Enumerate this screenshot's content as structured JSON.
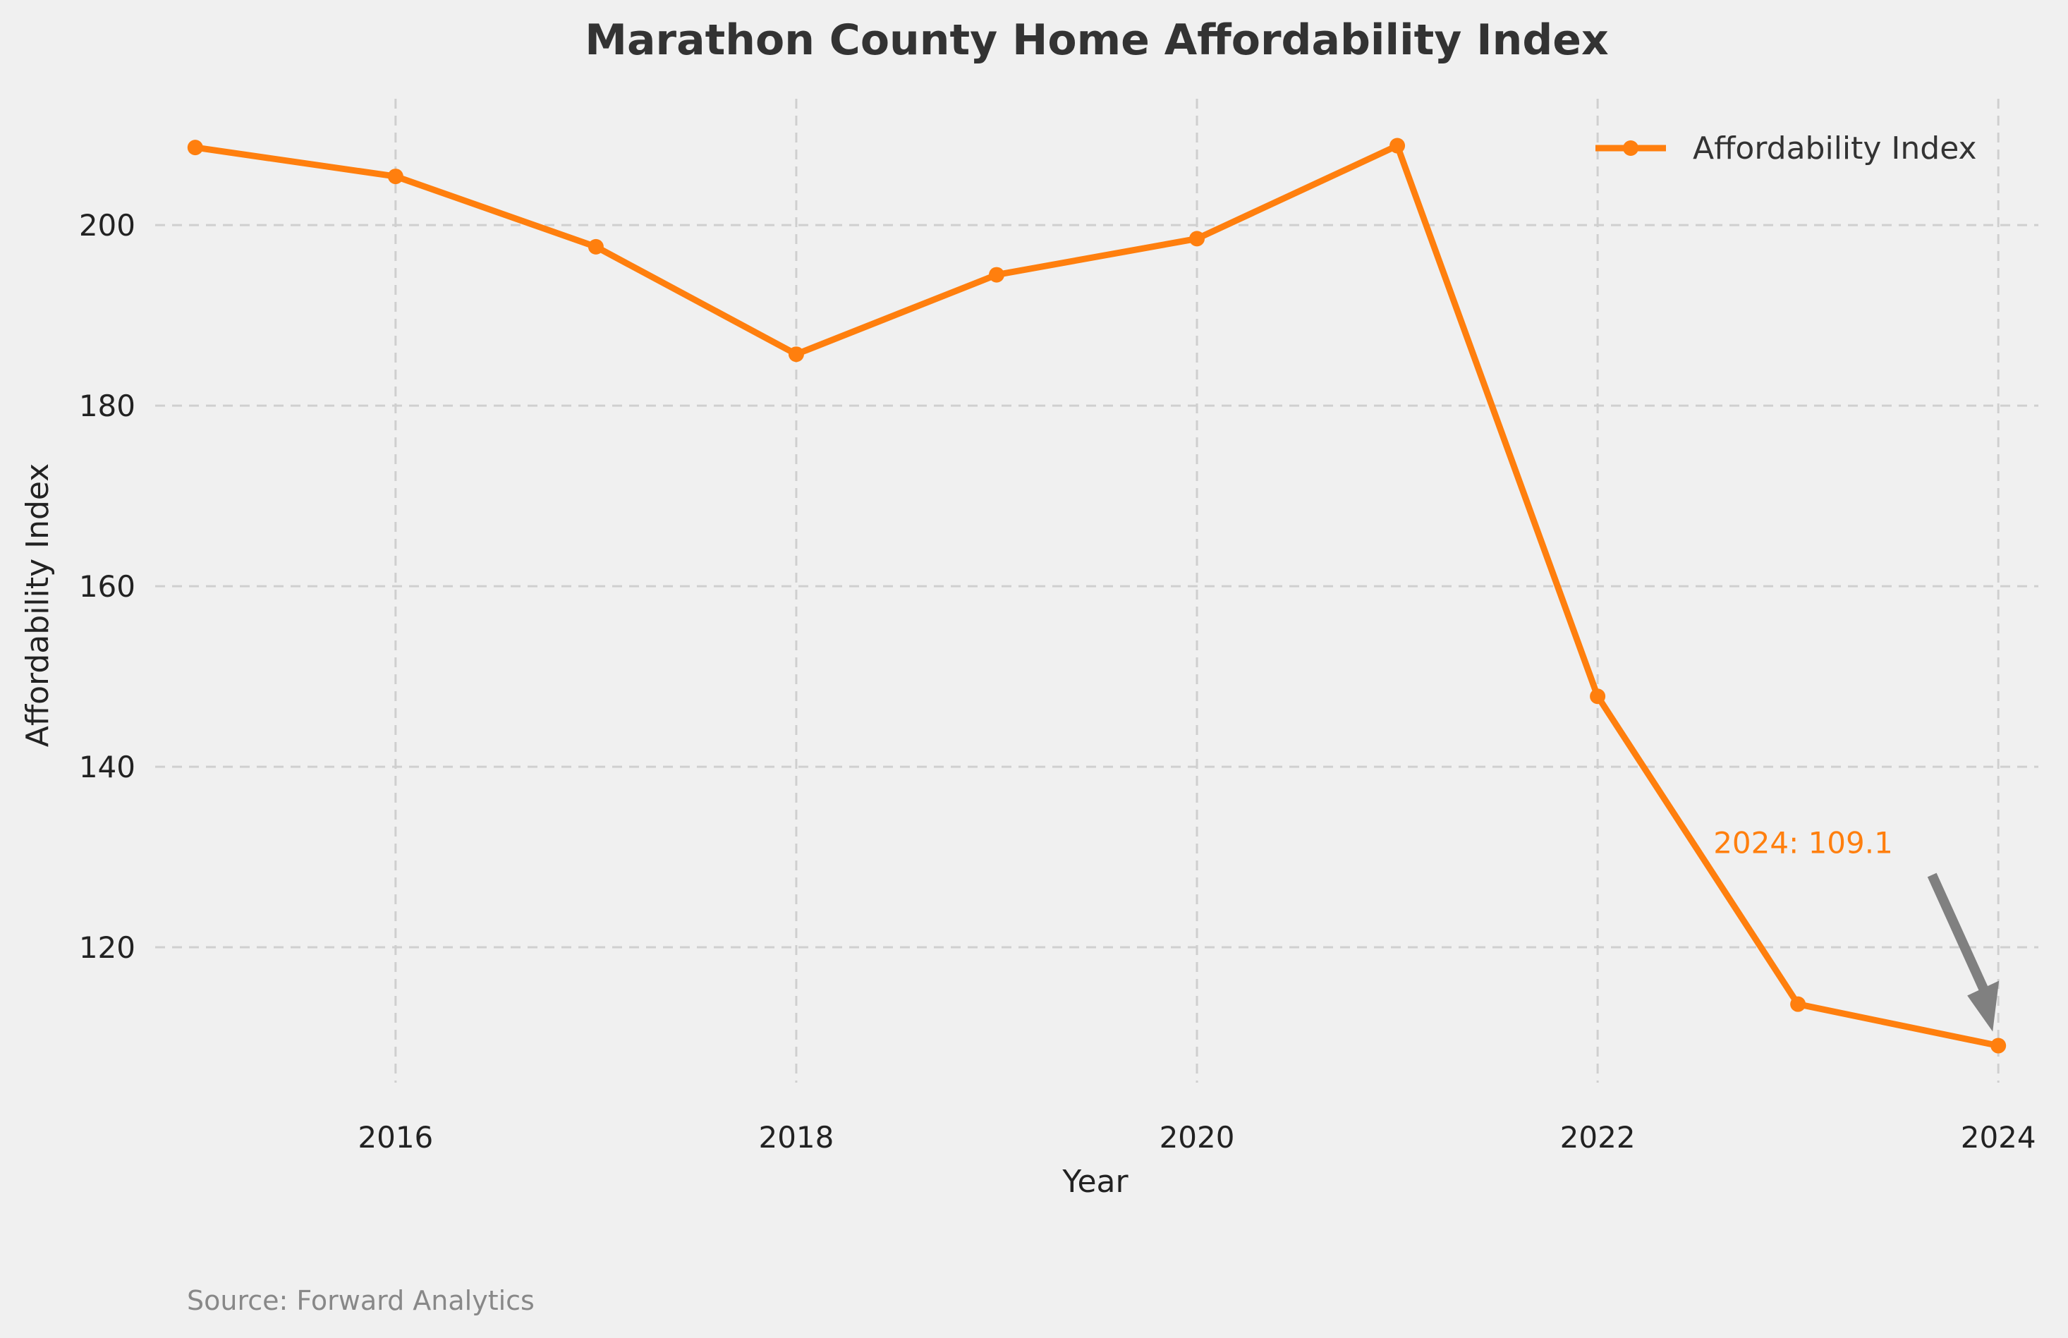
{
  "chart_data": {
    "type": "line",
    "title": "Marathon County Home Affordability Index",
    "xlabel": "Year",
    "ylabel": "Affordability Index",
    "x": [
      2015,
      2016,
      2017,
      2018,
      2019,
      2020,
      2021,
      2022,
      2023,
      2024
    ],
    "series": [
      {
        "name": "Affordability Index",
        "color": "#ff7f0e",
        "values": [
          208.6,
          205.4,
          197.6,
          185.7,
          194.5,
          198.5,
          208.8,
          147.8,
          113.7,
          109.1
        ]
      }
    ],
    "xlim": [
      2014.8,
      2024.2
    ],
    "ylim": [
      105,
      214
    ],
    "x_ticks": [
      2016,
      2018,
      2020,
      2022,
      2024
    ],
    "y_ticks": [
      120,
      140,
      160,
      180,
      200
    ],
    "grid": true,
    "legend_position": "top-right",
    "annotation": {
      "text": "2024: 109.1",
      "text_color": "#ff7f0e",
      "arrow_color": "#808080"
    },
    "source": "Source: Forward Analytics"
  }
}
